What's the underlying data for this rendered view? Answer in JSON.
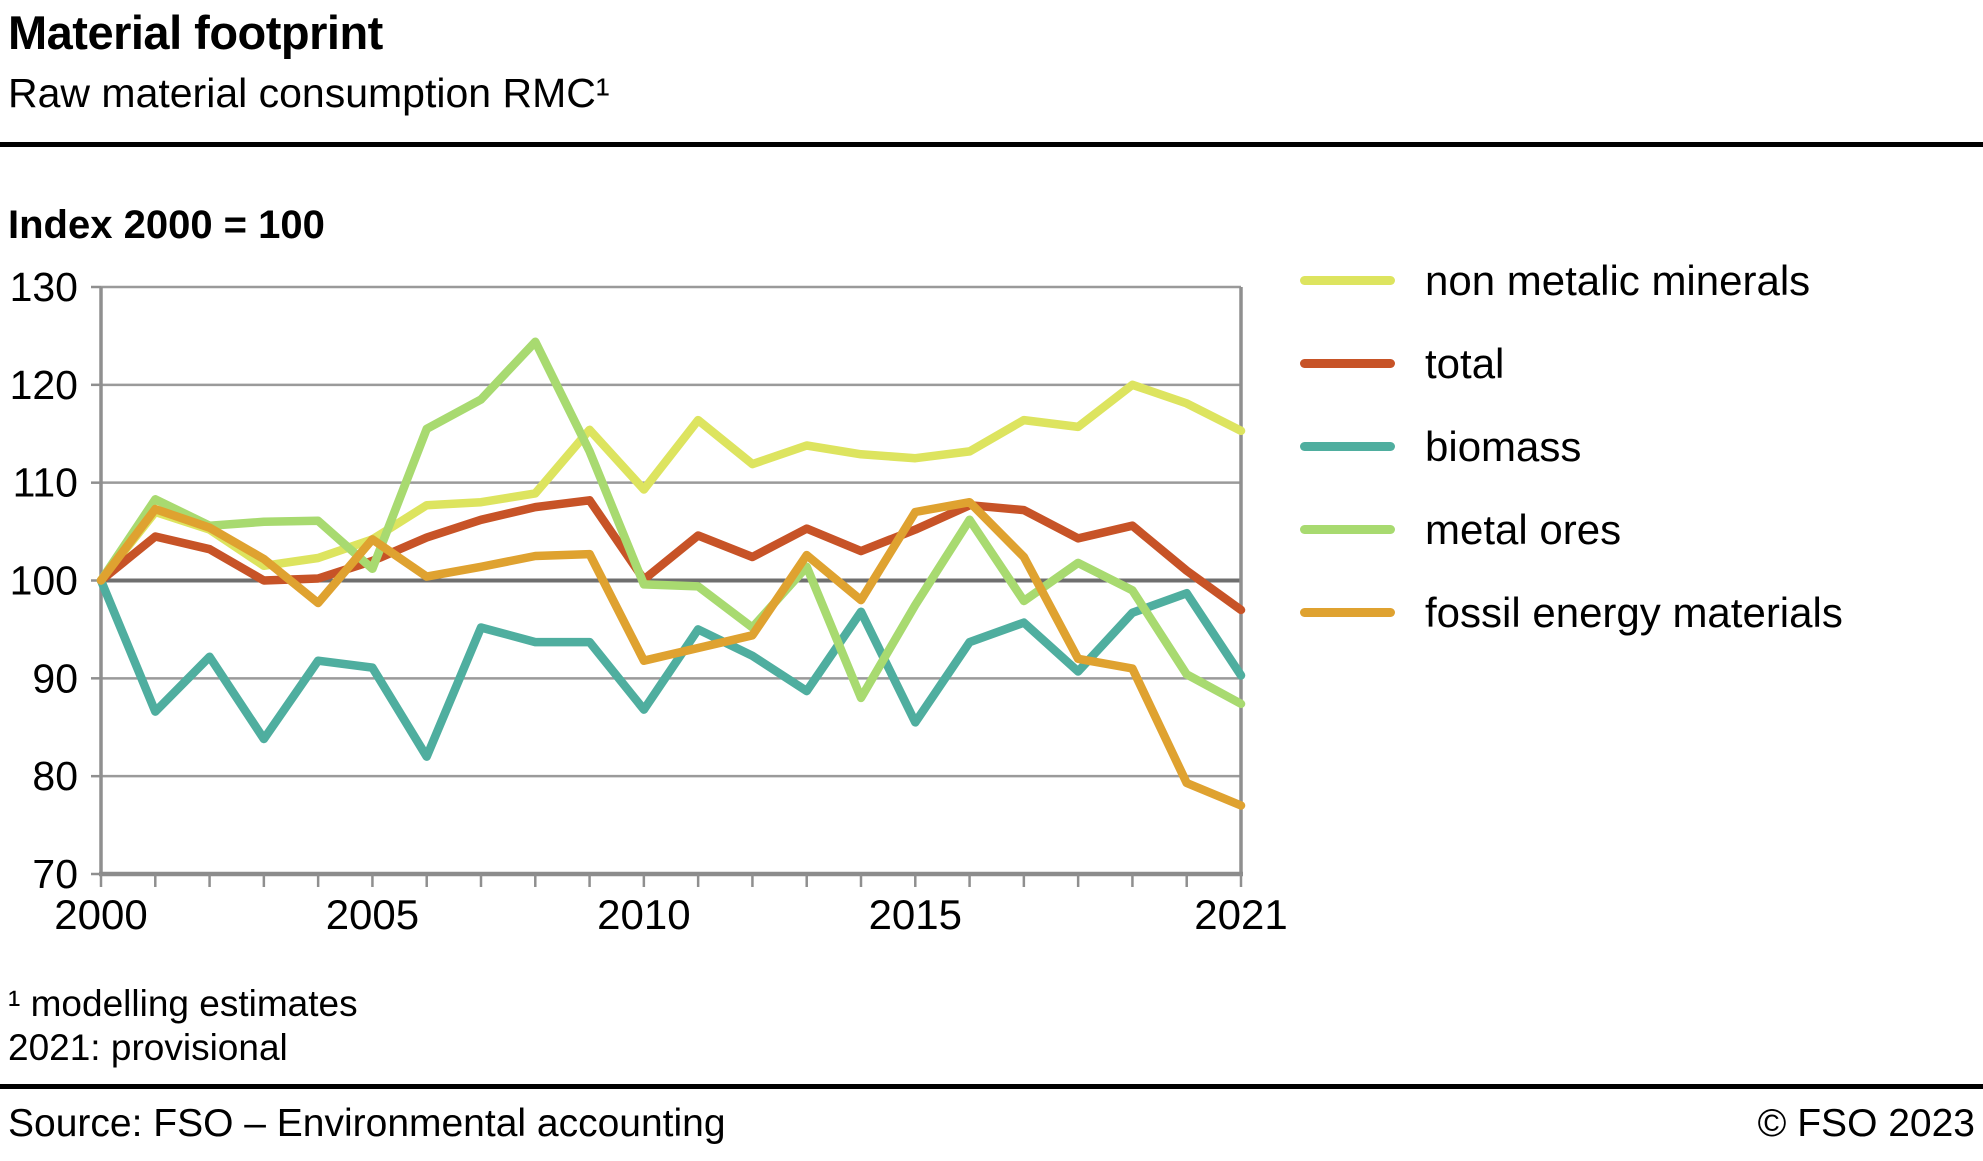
{
  "header": {
    "title": "Material footprint",
    "subtitle": "Raw material consumption RMC¹",
    "index_label": "Index 2000 = 100"
  },
  "footnotes": {
    "line1": "¹ modelling estimates",
    "line2": "2021: provisional"
  },
  "footer": {
    "source": "Source: FSO – Environmental accounting",
    "copyright": "© FSO 2023"
  },
  "colors": {
    "grid": "#9a9a9a",
    "grid_baseline": "#6f6f6f",
    "axis_frame": "#8f8f8f",
    "axis_bottom": "#8c8c8c",
    "text": "#000000",
    "rule": "#000000"
  },
  "chart_data": {
    "type": "line",
    "title": "Material footprint",
    "subtitle": "Raw material consumption RMC¹",
    "xlabel": "",
    "ylabel": "Index 2000 = 100",
    "xlim": [
      2000,
      2021
    ],
    "ylim": [
      70,
      130
    ],
    "y_ticks": [
      130,
      120,
      110,
      100,
      90,
      80,
      70
    ],
    "x_ticks_labeled": [
      2000,
      2005,
      2010,
      2015,
      2021
    ],
    "x_minor_tick_step": 1,
    "grid": true,
    "baseline": 100,
    "legend_position": "right",
    "x": [
      2000,
      2001,
      2002,
      2003,
      2004,
      2005,
      2006,
      2007,
      2008,
      2009,
      2010,
      2011,
      2012,
      2013,
      2014,
      2015,
      2016,
      2017,
      2018,
      2019,
      2020,
      2021
    ],
    "series": [
      {
        "name": "non metalic minerals",
        "color": "#dde45f",
        "values": [
          100,
          107.0,
          105.2,
          101.5,
          102.3,
          104.2,
          107.7,
          108.0,
          108.9,
          115.4,
          109.3,
          116.4,
          111.9,
          113.8,
          112.9,
          112.5,
          113.2,
          116.4,
          115.7,
          120.0,
          118.1,
          115.3
        ]
      },
      {
        "name": "total",
        "color": "#c75327",
        "values": [
          100,
          104.5,
          103.2,
          100.0,
          100.2,
          102.0,
          104.4,
          106.2,
          107.5,
          108.2,
          100.1,
          104.6,
          102.4,
          105.3,
          103.0,
          105.2,
          107.7,
          107.2,
          104.3,
          105.6,
          101.0,
          97.0
        ]
      },
      {
        "name": "biomass",
        "color": "#4fae9f",
        "values": [
          100,
          86.6,
          92.2,
          83.8,
          91.8,
          91.1,
          82.0,
          95.2,
          93.7,
          93.7,
          86.8,
          95.0,
          92.3,
          88.7,
          96.8,
          85.5,
          93.7,
          95.7,
          90.7,
          96.7,
          98.7,
          90.3
        ]
      },
      {
        "name": "metal ores",
        "color": "#a8da70",
        "values": [
          100,
          108.3,
          105.6,
          106.0,
          106.1,
          101.2,
          115.5,
          118.5,
          124.4,
          113.2,
          99.6,
          99.4,
          95.2,
          101.4,
          88.0,
          97.5,
          106.2,
          97.9,
          101.8,
          99.0,
          90.4,
          87.4
        ]
      },
      {
        "name": "fossil energy materials",
        "color": "#dfa230",
        "values": [
          100,
          107.3,
          105.4,
          102.2,
          97.7,
          104.2,
          100.4,
          101.4,
          102.5,
          102.7,
          91.8,
          93.1,
          94.4,
          102.6,
          98.0,
          107.0,
          108.0,
          102.4,
          92.0,
          91.0,
          79.3,
          77.0
        ]
      }
    ]
  }
}
